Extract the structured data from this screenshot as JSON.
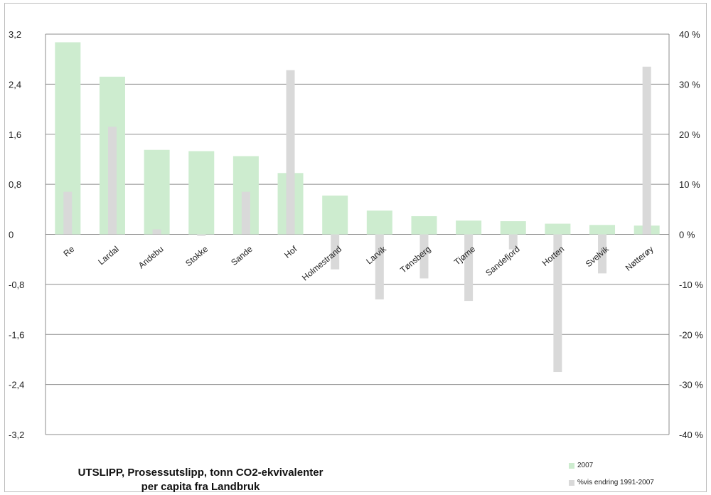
{
  "chart_data": {
    "type": "bar",
    "title_line1": "UTSLIPP, Prosessutslipp, tonn CO2-ekvivalenter",
    "title_line2": "per capita fra Landbruk",
    "categories": [
      "Re",
      "Lardal",
      "Andebu",
      "Stokke",
      "Sande",
      "Hof",
      "Holmestrand",
      "Larvik",
      "Tønsberg",
      "Tjøme",
      "Sandefjord",
      "Horten",
      "Svelvik",
      "Nøtterøy"
    ],
    "series": [
      {
        "name": "2007",
        "axis": "left",
        "color": "#cdeccf",
        "values": [
          3.07,
          2.52,
          1.35,
          1.33,
          1.25,
          0.98,
          0.62,
          0.38,
          0.29,
          0.22,
          0.21,
          0.17,
          0.15,
          0.14
        ]
      },
      {
        "name": "%vis endring 1991-2007",
        "axis": "right",
        "color": "#d9d9d9",
        "values": [
          8.5,
          21.5,
          1.0,
          -0.3,
          8.5,
          32.8,
          -7.0,
          -13.0,
          -8.8,
          -13.3,
          -3.0,
          -27.5,
          -7.8,
          33.5
        ]
      }
    ],
    "left_axis": {
      "ylim": [
        -3.2,
        3.2
      ],
      "ticks": [
        "3,2",
        "2,4",
        "1,6",
        "0,8",
        "0",
        "-0,8",
        "-1,6",
        "-2,4",
        "-3,2"
      ]
    },
    "right_axis": {
      "ylim": [
        -40,
        40
      ],
      "ticks": [
        "40 %",
        "30 %",
        "20 %",
        "10 %",
        "0 %",
        "-10 %",
        "-20 %",
        "-30 %",
        "-40 %"
      ]
    },
    "grid": true,
    "legend_position": "bottom-right"
  }
}
